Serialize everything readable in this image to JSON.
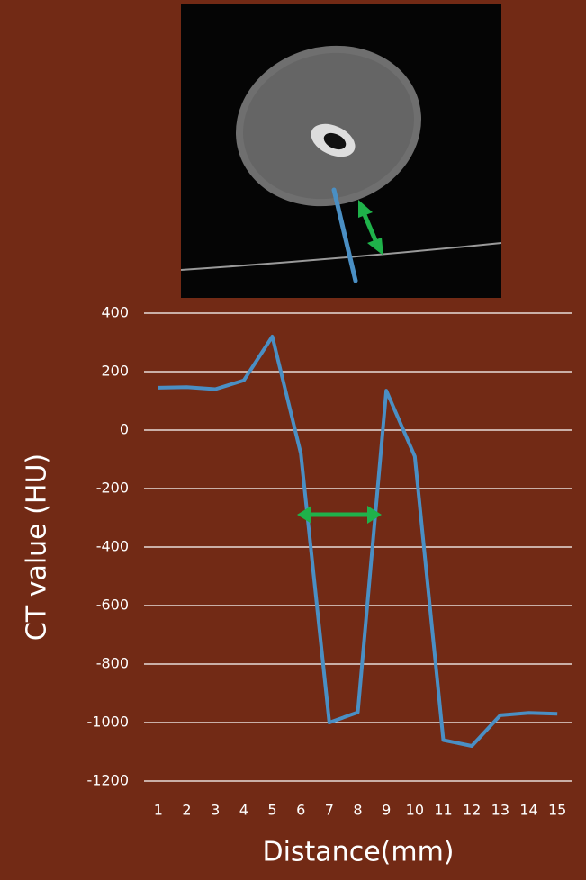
{
  "chart_data": {
    "type": "line",
    "y_label": "CT value (HU)",
    "x_label": "Distance(mm)",
    "categories": [
      1,
      2,
      3,
      4,
      5,
      6,
      7,
      8,
      9,
      10,
      11,
      12,
      13,
      14,
      15
    ],
    "values": [
      145,
      147,
      140,
      170,
      320,
      -80,
      -1000,
      -965,
      135,
      -90,
      -1060,
      -1080,
      -975,
      -967,
      -970
    ],
    "color": "#4a8fc4",
    "ylim": [
      -1200,
      400
    ],
    "yticks": [
      -1200,
      -1000,
      -800,
      -600,
      -400,
      -200,
      0,
      200,
      400
    ],
    "grid": true
  }
}
